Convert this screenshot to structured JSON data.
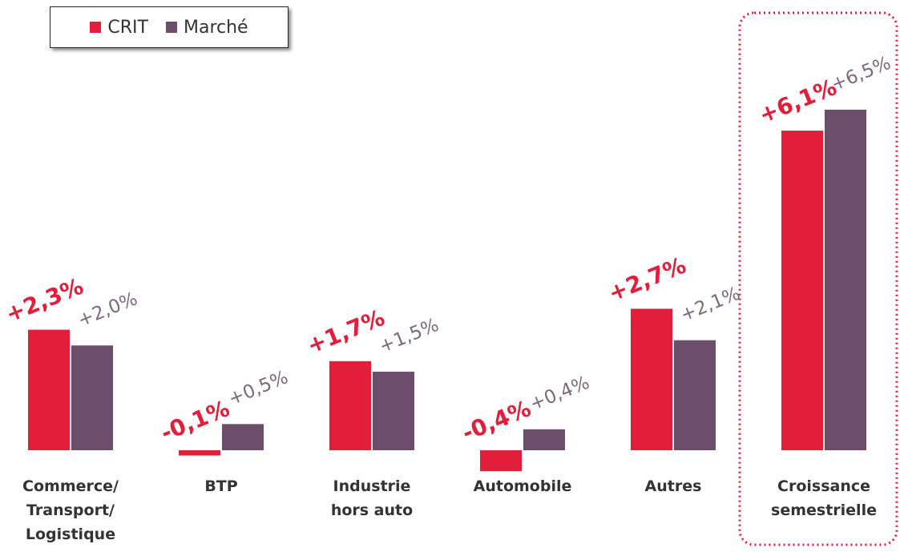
{
  "chart_data": {
    "type": "bar",
    "categories": [
      "Commerce/\nTransport/\nLogistique",
      "BTP",
      "Industrie\nhors auto",
      "Automobile",
      "Autres",
      "Croissance\nsemestrielle"
    ],
    "series": [
      {
        "name": "CRIT",
        "color": "#e31e3b",
        "values": [
          2.3,
          -0.1,
          1.7,
          -0.4,
          2.7,
          6.1
        ],
        "value_labels": [
          "+2,3%",
          "-0,1%",
          "+1,7%",
          "-0,4%",
          "+2,7%",
          "+6,1%"
        ]
      },
      {
        "name": "Marché",
        "color": "#6d4e6a",
        "values": [
          2.0,
          0.5,
          1.5,
          0.4,
          2.1,
          6.5
        ],
        "value_labels": [
          "+2,0%",
          "+0,5%",
          "+1,5%",
          "+0,4%",
          "+2,1%",
          "+6,5%"
        ]
      }
    ],
    "ylim": [
      -1,
      7
    ],
    "legend": "top-left"
  }
}
